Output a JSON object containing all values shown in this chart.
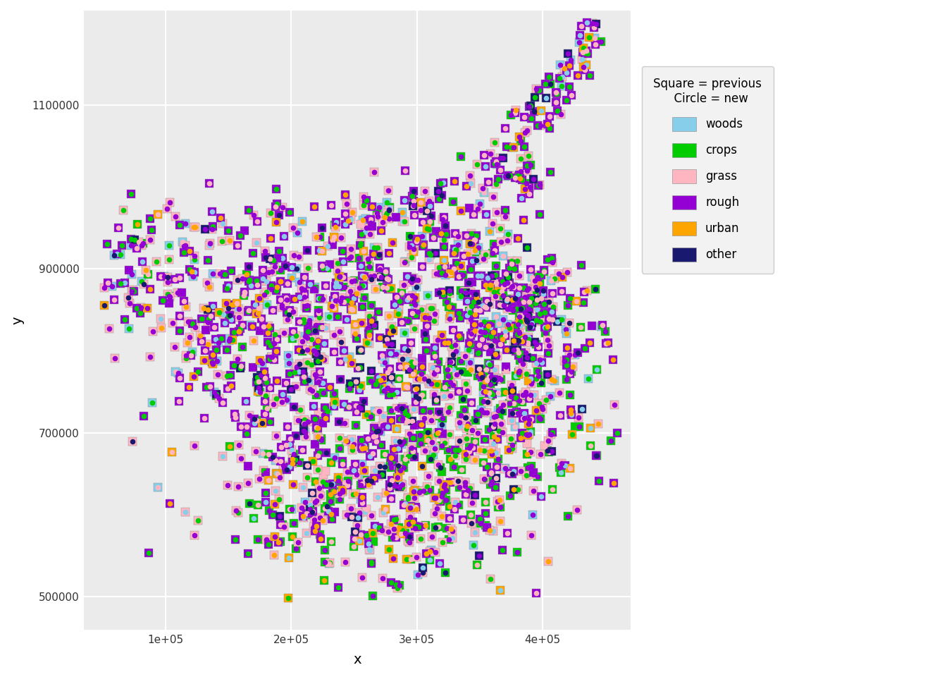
{
  "xlabel": "x",
  "ylabel": "y",
  "xlim": [
    35000,
    470000
  ],
  "ylim": [
    460000,
    1215000
  ],
  "xticks": [
    100000,
    200000,
    300000,
    400000
  ],
  "xtick_labels": [
    "1e+05",
    "2e+05",
    "3e+05",
    "4e+05"
  ],
  "yticks": [
    500000,
    700000,
    900000,
    1100000
  ],
  "ytick_labels": [
    "500000",
    "700000",
    "900000",
    "1100000"
  ],
  "background_color": "#EBEBEB",
  "grid_color": "#FFFFFF",
  "legend_title": "Square = previous\n  Circle = new",
  "land_use_types": [
    "woods",
    "crops",
    "grass",
    "rough",
    "urban",
    "other"
  ],
  "land_use_colors": {
    "woods": "#87CEEB",
    "crops": "#00CC00",
    "grass": "#FFB6C1",
    "rough": "#9400D3",
    "urban": "#FFA500",
    "other": "#191970"
  },
  "marker_size_square": 72,
  "marker_size_circle": 30,
  "random_seed": 42
}
